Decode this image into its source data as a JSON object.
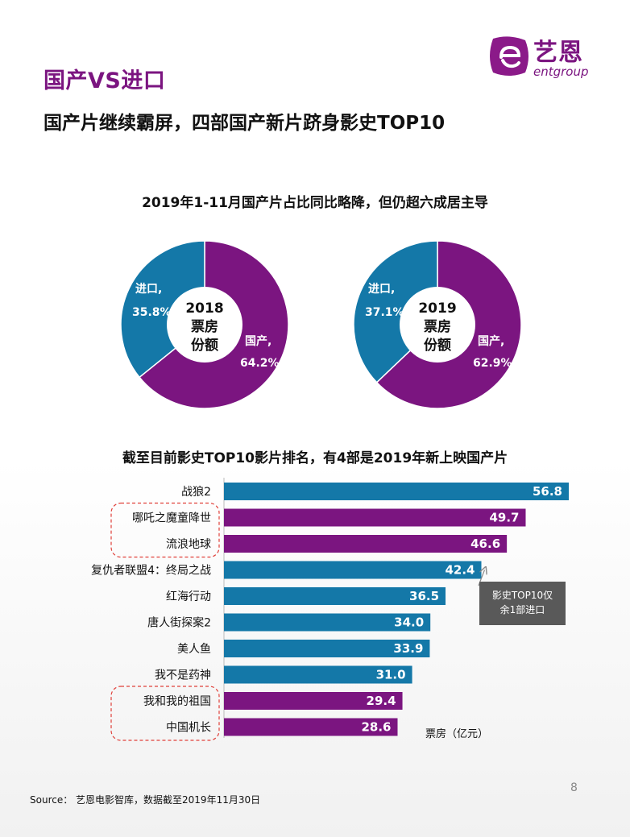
{
  "header": {
    "section_title": "国产VS进口",
    "headline": "国产片继续霸屏，四部国产新片跻身影史TOP10",
    "logo_cn": "艺恩",
    "logo_en": "entgroup"
  },
  "chart_data": [
    {
      "type": "pie",
      "title": "2019年1-11月国产片占比同比略降，但仍超六成居主导",
      "charts": [
        {
          "center_label": [
            "2018",
            "票房",
            "份额"
          ],
          "slices": [
            {
              "name": "国产,",
              "value": 64.2,
              "label": "64.2%",
              "color": "#7B1580"
            },
            {
              "name": "进口,",
              "value": 35.8,
              "label": "35.8%",
              "color": "#1478A8"
            }
          ]
        },
        {
          "center_label": [
            "2019",
            "票房",
            "份额"
          ],
          "slices": [
            {
              "name": "国产,",
              "value": 62.9,
              "label": "62.9%",
              "color": "#7B1580"
            },
            {
              "name": "进口,",
              "value": 37.1,
              "label": "37.1%",
              "color": "#1478A8"
            }
          ]
        }
      ]
    },
    {
      "type": "bar",
      "orientation": "horizontal",
      "title": "截至目前影史TOP10影片排名，有4部是2019年新上映国产片",
      "categories": [
        "战狼2",
        "哪吒之魔童降世",
        "流浪地球",
        "复仇者联盟4：终局之战",
        "红海行动",
        "唐人街探案2",
        "美人鱼",
        "我不是药神",
        "我和我的祖国",
        "中国机长"
      ],
      "values": [
        56.8,
        49.7,
        46.6,
        42.4,
        36.5,
        34.0,
        33.9,
        31.0,
        29.4,
        28.6
      ],
      "value_labels": [
        "56.8",
        "49.7",
        "46.6",
        "42.4",
        "36.5",
        "34.0",
        "33.9",
        "31.0",
        "29.4",
        "28.6"
      ],
      "colors": [
        "#1478A8",
        "#7B1580",
        "#7B1580",
        "#1478A8",
        "#1478A8",
        "#1478A8",
        "#1478A8",
        "#1478A8",
        "#7B1580",
        "#7B1580"
      ],
      "highlight_groups": [
        [
          1,
          2
        ],
        [
          8,
          9
        ]
      ],
      "unit_label": "票房（亿元）",
      "annotation": {
        "text": [
          "影史TOP10仅",
          "余1部进口"
        ],
        "points_to": "复仇者联盟4：终局之战"
      },
      "xlim": [
        0,
        56.8
      ],
      "grid": false
    }
  ],
  "footer": {
    "source": "Source： 艺恩电影智库，数据截至2019年11月30日",
    "page": "8"
  }
}
